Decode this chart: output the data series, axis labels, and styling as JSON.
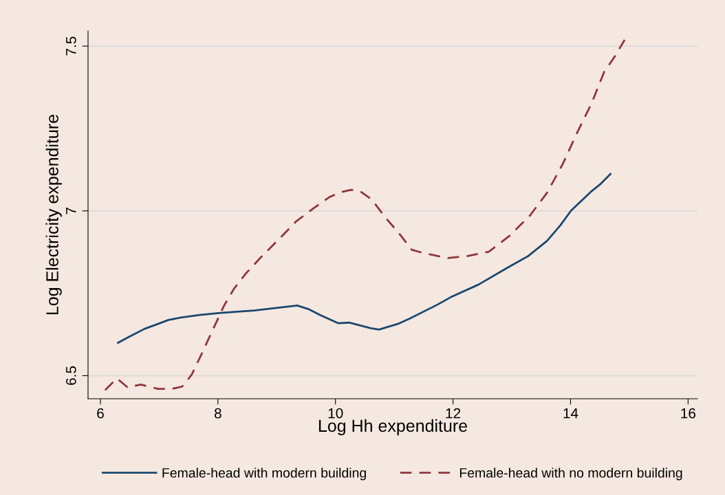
{
  "chart_data": {
    "type": "line",
    "xlabel": "Log Hh expenditure",
    "ylabel": "Log Electricity expenditure",
    "xlim": [
      5.79,
      16.16
    ],
    "ylim": [
      6.43,
      7.546
    ],
    "xticks": [
      6,
      8,
      10,
      12,
      14,
      16
    ],
    "yticks": [
      6.5,
      7,
      7.5
    ],
    "grid": "y",
    "legend": "bottom",
    "series": [
      {
        "name": "Female-head with modern building",
        "color": "#1a476f",
        "line_style": "solid",
        "x": [
          6.3,
          6.52,
          6.75,
          6.98,
          7.16,
          7.39,
          7.69,
          8.01,
          8.33,
          8.62,
          8.97,
          9.35,
          9.54,
          9.74,
          10.05,
          10.24,
          10.6,
          10.74,
          11.06,
          11.26,
          11.73,
          11.96,
          12.43,
          12.93,
          13.28,
          13.6,
          13.83,
          14.01,
          14.34,
          14.5,
          14.68
        ],
        "values": [
          6.6,
          6.621,
          6.642,
          6.657,
          6.669,
          6.677,
          6.684,
          6.69,
          6.694,
          6.698,
          6.705,
          6.713,
          6.702,
          6.684,
          6.659,
          6.661,
          6.644,
          6.64,
          6.657,
          6.673,
          6.715,
          6.738,
          6.776,
          6.828,
          6.863,
          6.909,
          6.957,
          7.001,
          7.057,
          7.08,
          7.112
        ]
      },
      {
        "name": "Female-head with no modern building",
        "color": "#90353b",
        "line_style": "dashed",
        "x": [
          6.08,
          6.28,
          6.46,
          6.69,
          6.98,
          7.22,
          7.39,
          7.55,
          7.72,
          7.92,
          8.1,
          8.27,
          8.47,
          8.72,
          9.07,
          9.33,
          9.62,
          9.89,
          10.09,
          10.27,
          10.44,
          10.62,
          10.85,
          11.09,
          11.3,
          11.5,
          11.91,
          12.25,
          12.61,
          12.96,
          13.31,
          13.6,
          13.87,
          14.1,
          14.36,
          14.57,
          14.77,
          14.92
        ],
        "values": [
          6.456,
          6.492,
          6.465,
          6.473,
          6.46,
          6.46,
          6.467,
          6.502,
          6.565,
          6.642,
          6.711,
          6.763,
          6.809,
          6.857,
          6.92,
          6.968,
          7.007,
          7.041,
          7.057,
          7.064,
          7.057,
          7.034,
          6.98,
          6.93,
          6.882,
          6.872,
          6.857,
          6.863,
          6.876,
          6.924,
          6.986,
          7.055,
          7.143,
          7.233,
          7.327,
          7.421,
          7.473,
          7.519
        ]
      }
    ]
  }
}
